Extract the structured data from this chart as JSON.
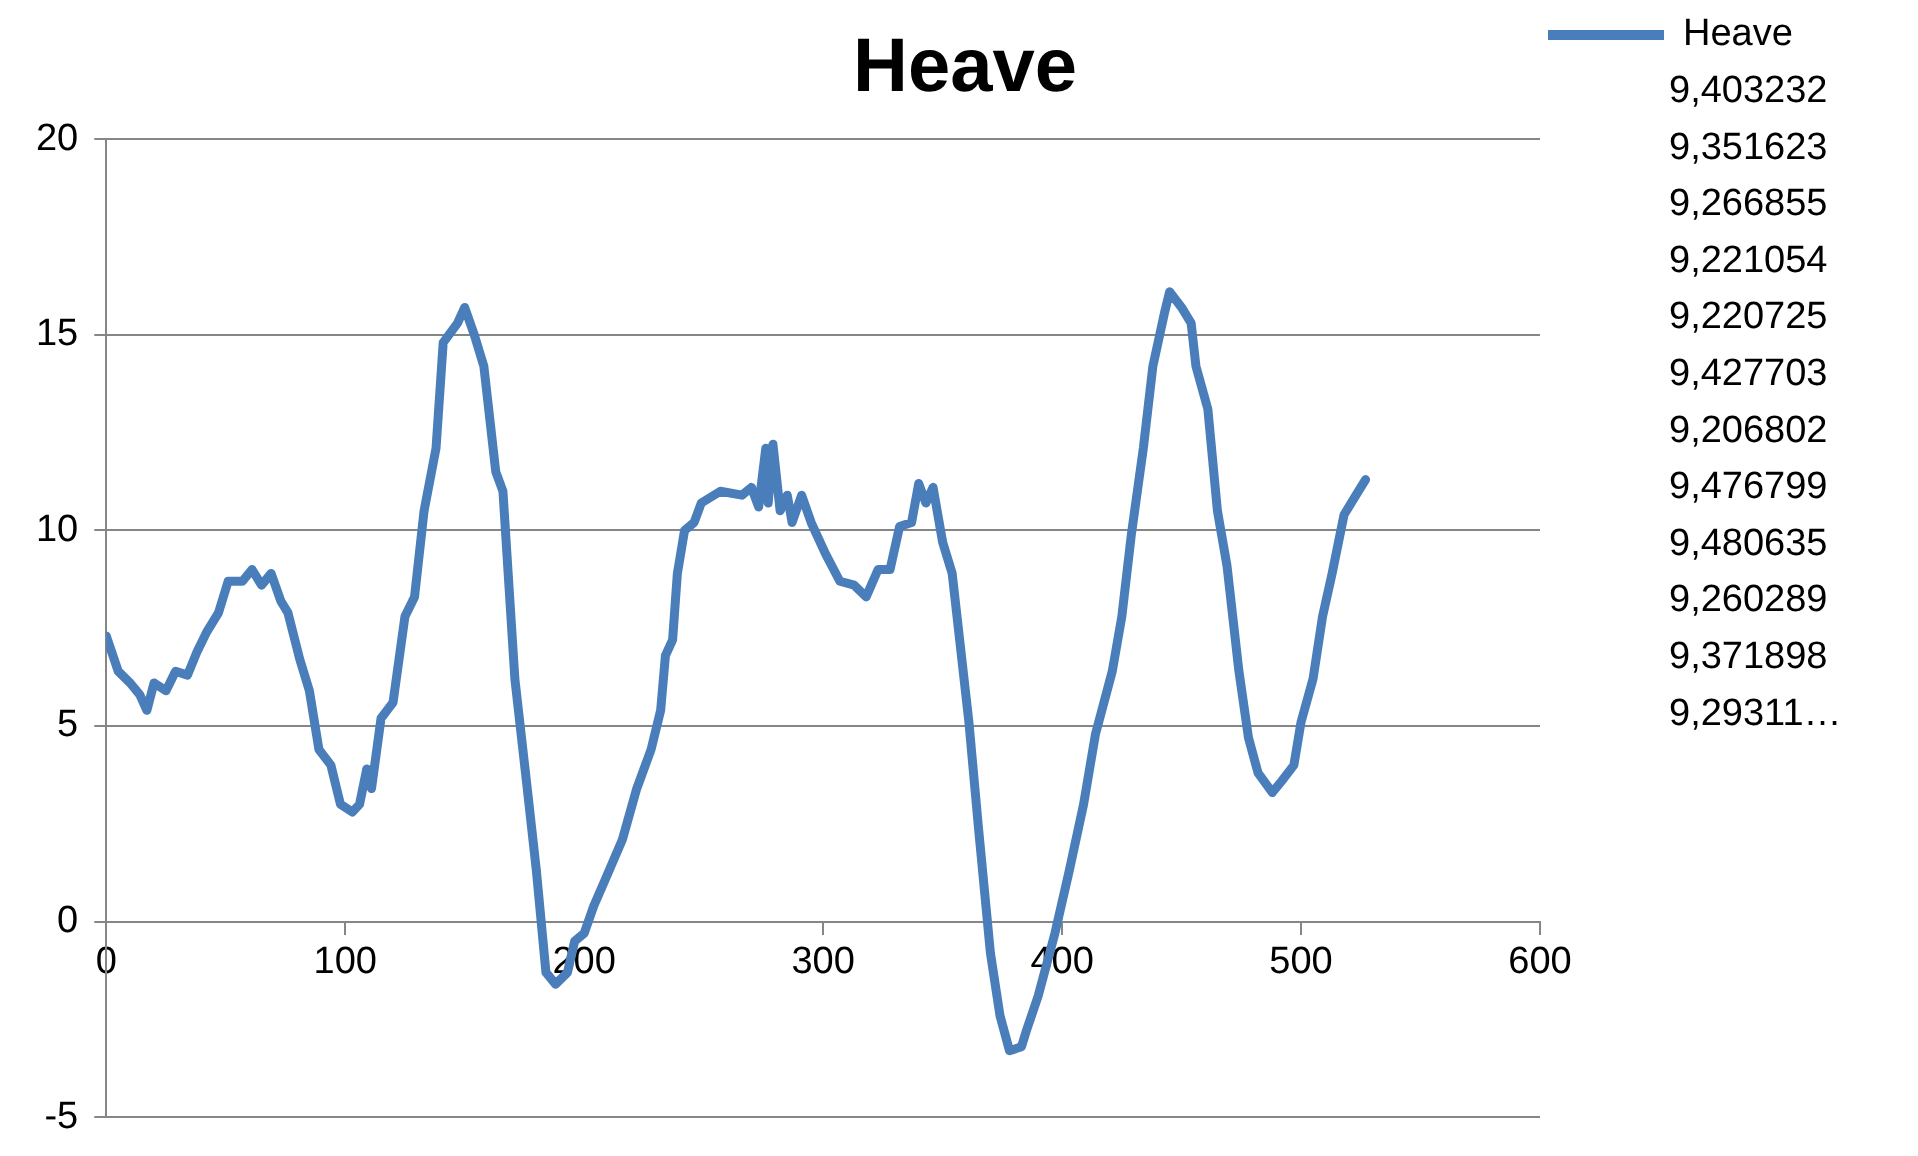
{
  "chart_data": {
    "type": "line",
    "title": "Heave",
    "x": [
      0,
      5,
      10,
      14,
      17,
      20,
      25,
      29,
      34,
      38,
      42,
      47,
      51,
      57,
      61,
      65,
      69,
      73,
      76,
      81,
      85,
      89,
      94,
      98,
      103,
      106,
      109,
      111,
      115,
      120,
      125,
      129,
      133,
      138,
      141,
      147,
      150,
      154,
      158,
      163,
      166,
      171,
      176,
      180,
      184,
      188,
      193,
      196,
      200,
      204,
      209,
      216,
      222,
      228,
      232,
      234,
      237,
      239,
      242,
      246,
      249,
      257,
      266,
      270,
      273,
      276,
      277,
      279,
      282,
      285,
      287,
      291,
      295,
      301,
      307,
      313,
      318,
      323,
      328,
      332,
      337,
      340,
      343,
      346,
      350,
      354,
      361,
      365,
      370,
      374,
      378,
      383,
      385,
      390,
      397,
      403,
      409,
      414,
      421,
      425,
      429,
      434,
      438,
      443,
      445,
      450,
      454,
      456,
      461,
      465,
      469,
      474,
      478,
      482,
      488,
      492,
      497,
      500,
      505,
      509,
      513,
      518,
      523,
      527
    ],
    "series": [
      {
        "name": "Heave",
        "color": "#4a7ebb",
        "values": [
          7.3,
          6.4,
          6.1,
          5.8,
          5.4,
          6.1,
          5.9,
          6.4,
          6.3,
          6.9,
          7.4,
          7.9,
          8.7,
          8.7,
          9.0,
          8.6,
          8.9,
          8.2,
          7.9,
          6.7,
          5.9,
          4.4,
          4.0,
          3.0,
          2.8,
          3.0,
          3.9,
          3.4,
          5.2,
          5.6,
          7.8,
          8.3,
          10.5,
          12.1,
          14.8,
          15.3,
          15.7,
          15.0,
          14.2,
          11.5,
          11.0,
          6.2,
          3.5,
          1.3,
          -1.3,
          -1.6,
          -1.3,
          -0.5,
          -0.3,
          0.4,
          1.1,
          2.1,
          3.4,
          4.4,
          5.4,
          6.8,
          7.2,
          8.9,
          10.0,
          10.2,
          10.7,
          11.0,
          10.9,
          11.1,
          10.6,
          12.1,
          10.7,
          12.2,
          10.5,
          10.9,
          10.2,
          10.9,
          10.2,
          9.4,
          8.7,
          8.6,
          8.3,
          9.0,
          9.0,
          10.1,
          10.2,
          11.2,
          10.7,
          11.1,
          9.7,
          8.9,
          5.1,
          2.4,
          -0.8,
          -2.4,
          -3.3,
          -3.2,
          -2.8,
          -1.9,
          -0.3,
          1.3,
          3.0,
          4.8,
          6.4,
          7.8,
          9.9,
          12.1,
          14.2,
          15.6,
          16.1,
          15.7,
          15.3,
          14.2,
          13.1,
          10.5,
          9.1,
          6.4,
          4.7,
          3.8,
          3.3,
          3.6,
          4.0,
          5.1,
          6.2,
          7.8,
          8.9,
          10.4,
          10.9,
          11.3
        ]
      }
    ],
    "xlim": [
      0,
      600
    ],
    "xticks": [
      0,
      100,
      200,
      300,
      400,
      500,
      600
    ],
    "ylim": [
      -5,
      20
    ],
    "yticks": [
      -5,
      0,
      5,
      10,
      15,
      20
    ],
    "grid": "y",
    "legend": "right",
    "marker": "none",
    "line_style": "solid",
    "annotations": [
      "9,403232",
      "9,351623",
      "9,266855",
      "9,221054",
      "9,220725",
      "9,427703",
      "9,206802",
      "9,476799",
      "9,480635",
      "9,260289",
      "9,371898",
      "9,29311…"
    ]
  }
}
